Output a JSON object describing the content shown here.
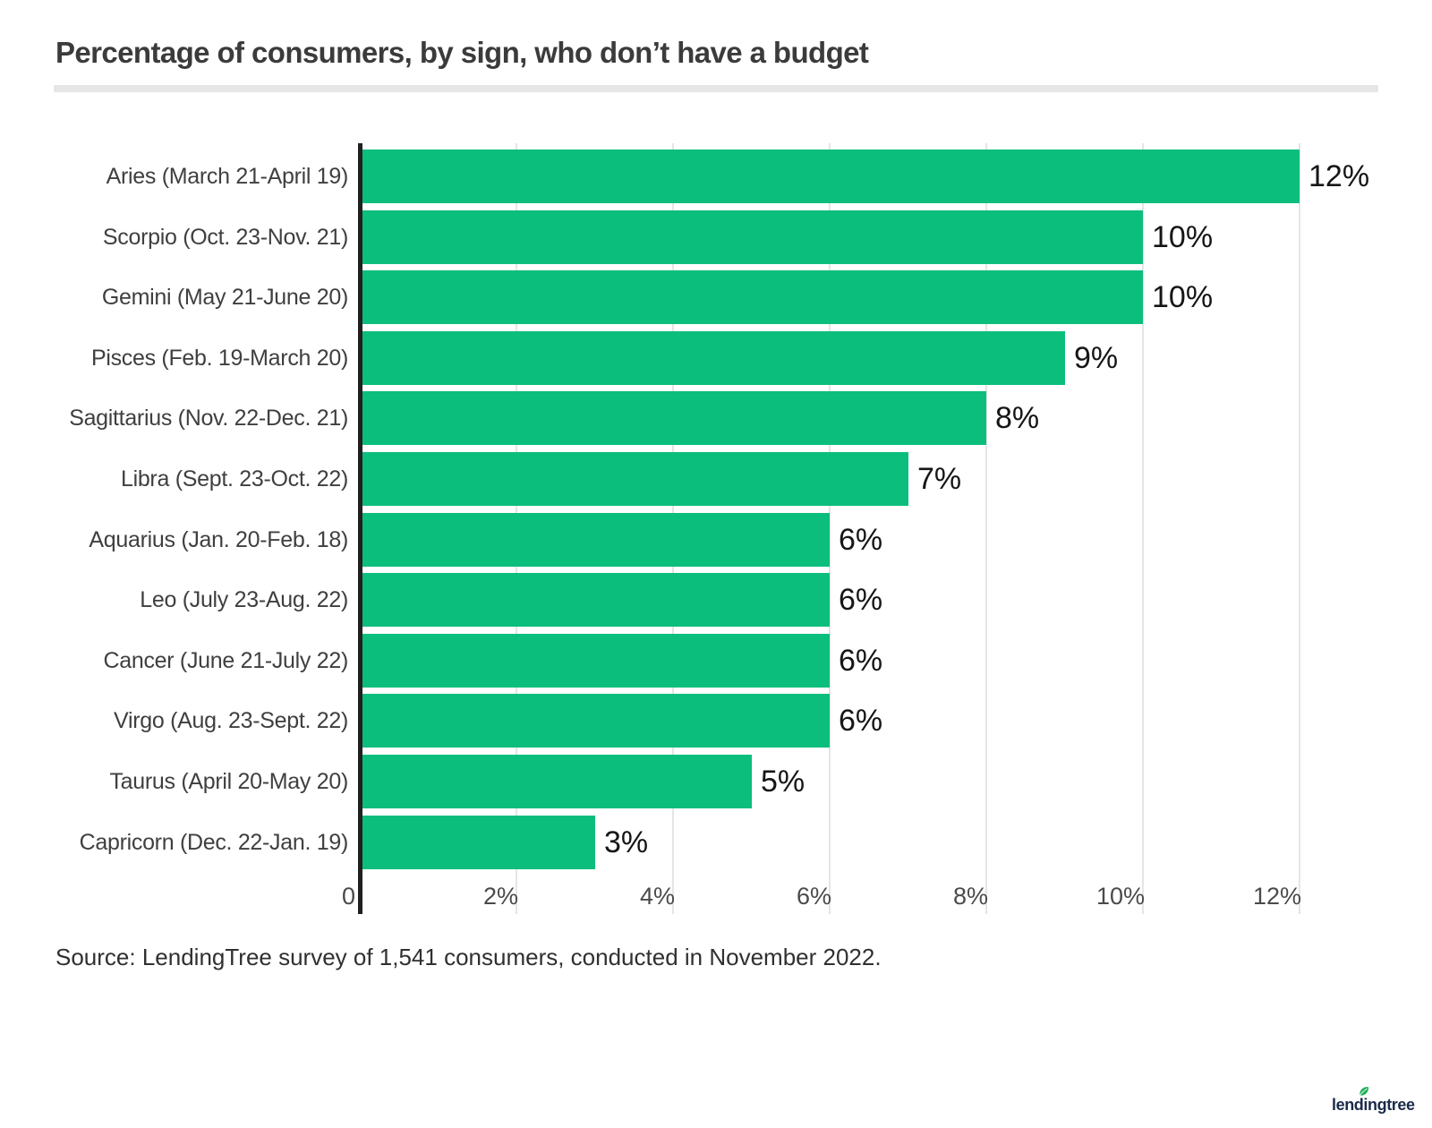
{
  "title": "Percentage of consumers, by sign, who don’t have a budget",
  "source": "Source: LendingTree survey of 1,541 consumers, conducted in November 2022.",
  "logo": {
    "text": "lendingtree"
  },
  "colors": {
    "bar": "#0cbe7c",
    "axis": "#202020",
    "gridline": "#e5e5e5",
    "title": "#3b3b3b",
    "category_label": "#3f3f3f",
    "value_label": "#161616",
    "tick_label": "#4a4a4a",
    "source": "#303030",
    "logo_text": "#1b2b4a",
    "leaf": "#21b25b",
    "divider": "#e6e6e6"
  },
  "chart_data": {
    "type": "bar",
    "orientation": "horizontal",
    "title": "Percentage of consumers, by sign, who don’t have a budget",
    "categories": [
      "Aries (March 21-April 19)",
      "Scorpio (Oct. 23-Nov. 21)",
      "Gemini (May 21-June 20)",
      "Pisces (Feb. 19-March 20)",
      "Sagittarius (Nov. 22-Dec. 21)",
      "Libra (Sept. 23-Oct. 22)",
      "Aquarius (Jan. 20-Feb. 18)",
      "Leo (July 23-Aug. 22)",
      "Cancer (June 21-July 22)",
      "Virgo (Aug. 23-Sept. 22)",
      "Taurus (April 20-May 20)",
      "Capricorn (Dec. 22-Jan. 19)"
    ],
    "values": [
      12,
      10,
      10,
      9,
      8,
      7,
      6,
      6,
      6,
      6,
      5,
      3
    ],
    "value_labels": [
      "12%",
      "10%",
      "10%",
      "9%",
      "8%",
      "7%",
      "6%",
      "6%",
      "6%",
      "6%",
      "5%",
      "3%"
    ],
    "x_ticks": [
      {
        "value": 0,
        "label": "0"
      },
      {
        "value": 2,
        "label": "2%"
      },
      {
        "value": 4,
        "label": "4%"
      },
      {
        "value": 6,
        "label": "6%"
      },
      {
        "value": 8,
        "label": "8%"
      },
      {
        "value": 10,
        "label": "10%"
      },
      {
        "value": 12,
        "label": "12%"
      }
    ],
    "xlim": [
      0,
      12
    ],
    "xlabel": "",
    "ylabel": "",
    "grid": true,
    "legend": false
  }
}
